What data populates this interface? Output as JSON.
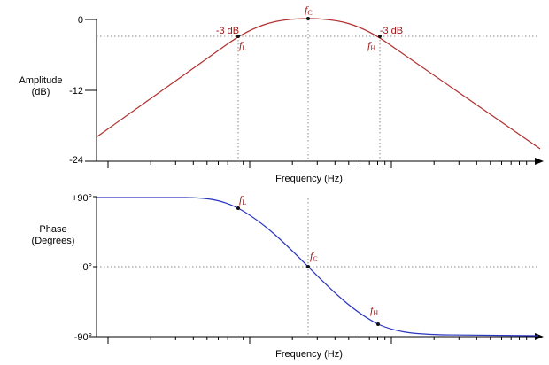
{
  "amplitude_chart": {
    "ylabel_line1": "Amplitude",
    "ylabel_line2": "(dB)",
    "y_ticks": [
      "0",
      "-12",
      "-24"
    ],
    "xlabel": "Frequency (Hz)",
    "annotation_minus3_left": "-3 dB",
    "annotation_minus3_right": "-3 dB",
    "marker_fc": "f",
    "marker_fc_sub": "C",
    "marker_fl": "f",
    "marker_fl_sub": "L",
    "marker_fh": "f",
    "marker_fh_sub": "H"
  },
  "phase_chart": {
    "ylabel_line1": "Phase",
    "ylabel_line2": "(Degrees)",
    "y_ticks": [
      "+90°",
      "0°",
      "-90°"
    ],
    "xlabel": "Frequency (Hz)",
    "marker_fc": "f",
    "marker_fc_sub": "C",
    "marker_fl": "f",
    "marker_fl_sub": "L",
    "marker_fh": "f",
    "marker_fh_sub": "H"
  },
  "colors": {
    "amplitude_curve": "#b03030",
    "phase_curve": "#2a35c0",
    "annotation_text": "#a01818",
    "guide_line": "#888888",
    "axis": "#000000"
  },
  "chart_data": [
    {
      "type": "line",
      "title": "",
      "ylabel": "Amplitude (dB)",
      "xlabel": "Frequency (Hz)",
      "x_scale": "log",
      "ylim": [
        -24,
        0
      ],
      "y_ticks": [
        0,
        -12,
        -24
      ],
      "grid": false,
      "series": [
        {
          "points_relative_to_fc_decades": [
            -1.0,
            -0.33,
            0.0,
            0.33,
            1.0
          ],
          "values": [
            -19.5,
            -3,
            0,
            -3,
            -21
          ]
        }
      ],
      "annotations": [
        "-3 dB",
        "-3 dB"
      ]
    },
    {
      "type": "line",
      "title": "",
      "ylabel": "Phase (Degrees)",
      "xlabel": "Frequency (Hz)",
      "x_scale": "log",
      "ylim": [
        -90,
        90
      ],
      "y_ticks": [
        90,
        0,
        -90
      ],
      "grid": false,
      "series": [
        {
          "points_relative_to_fc_decades": [
            -1.0,
            -0.33,
            0.0,
            0.33,
            1.0
          ],
          "values": [
            89,
            77,
            0,
            -77,
            -89
          ]
        }
      ]
    }
  ]
}
